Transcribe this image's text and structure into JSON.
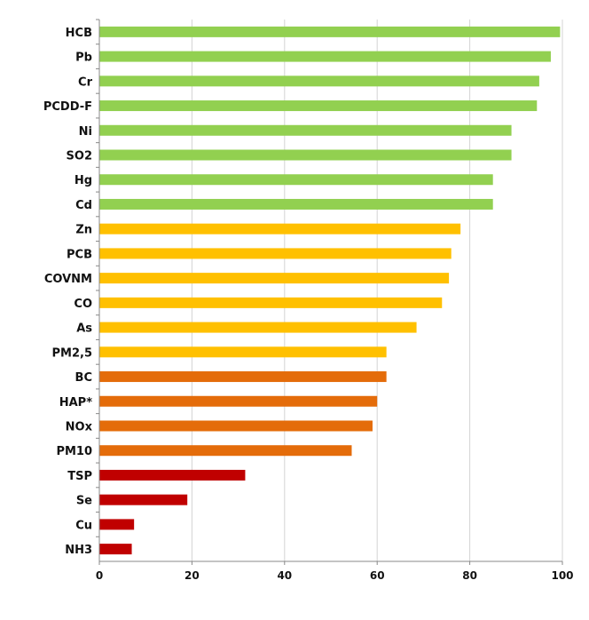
{
  "chart_data": {
    "type": "bar",
    "orientation": "horizontal",
    "title": "",
    "xlabel": "",
    "ylabel": "",
    "xlim": [
      0,
      100
    ],
    "xticks": [
      0,
      20,
      40,
      60,
      80,
      100
    ],
    "grid": "vertical",
    "legend": "none",
    "categories": [
      "HCB",
      "Pb",
      "Cr",
      "PCDD-F",
      "Ni",
      "SO2",
      "Hg",
      "Cd",
      "Zn",
      "PCB",
      "COVNM",
      "CO",
      "As",
      "PM2,5",
      "BC",
      "HAP*",
      "NOx",
      "PM10",
      "TSP",
      "Se",
      "Cu",
      "NH3"
    ],
    "values": [
      99.5,
      97.5,
      95,
      94.5,
      89,
      89,
      85,
      85,
      78,
      76,
      75.5,
      74,
      68.5,
      62,
      62,
      60,
      59,
      54.5,
      31.5,
      19,
      7.5,
      7
    ],
    "bar_colors": [
      "#92d050",
      "#92d050",
      "#92d050",
      "#92d050",
      "#92d050",
      "#92d050",
      "#92d050",
      "#92d050",
      "#ffc000",
      "#ffc000",
      "#ffc000",
      "#ffc000",
      "#ffc000",
      "#ffc000",
      "#e46c0a",
      "#e46c0a",
      "#e46c0a",
      "#e46c0a",
      "#c00000",
      "#c00000",
      "#c00000",
      "#c00000"
    ]
  }
}
